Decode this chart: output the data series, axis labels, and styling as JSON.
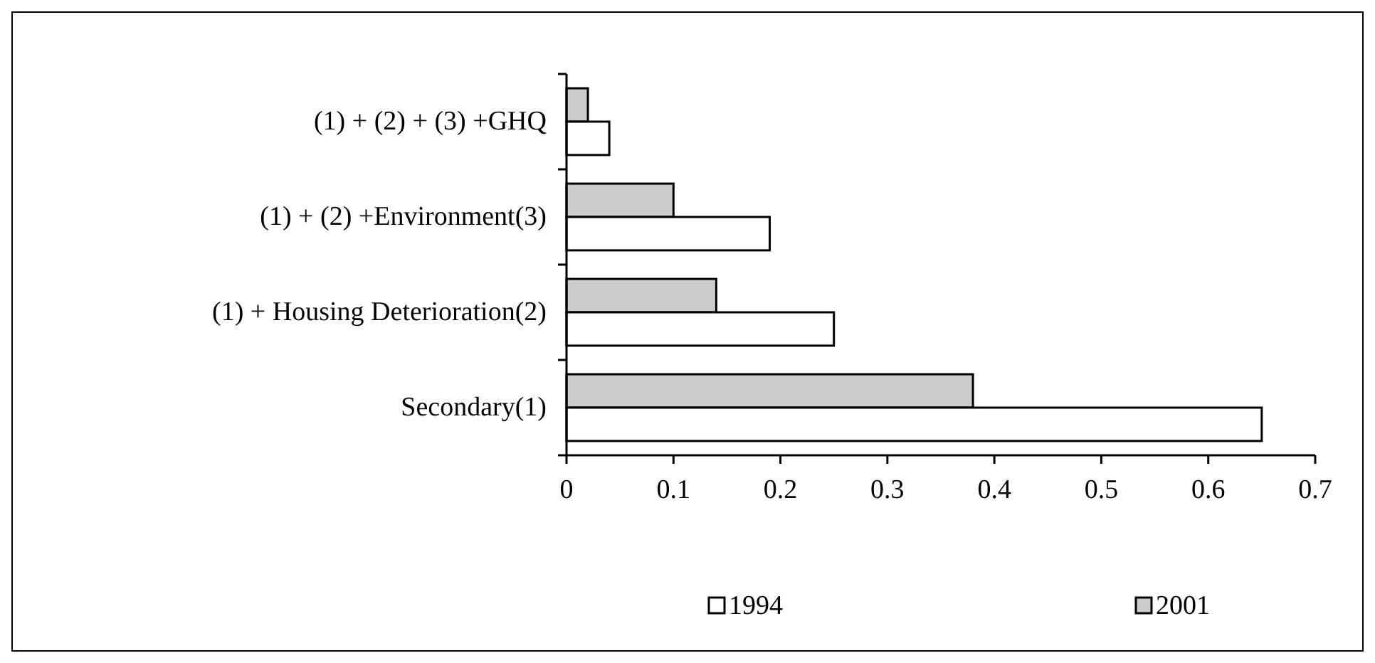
{
  "chart_data": {
    "type": "bar",
    "orientation": "horizontal",
    "categories": [
      "(1) + (2) + (3) +GHQ",
      "(1) + (2) +Environment(3)",
      "(1) + Housing Deterioration(2)",
      "Secondary(1)"
    ],
    "series": [
      {
        "name": "2001",
        "color": "#cccccc",
        "values": [
          0.02,
          0.1,
          0.14,
          0.38
        ]
      },
      {
        "name": "1994",
        "color": "#ffffff",
        "values": [
          0.04,
          0.19,
          0.25,
          0.65
        ]
      }
    ],
    "xlim": [
      0,
      0.7
    ],
    "xticks": [
      0,
      0.1,
      0.2,
      0.3,
      0.4,
      0.5,
      0.6,
      0.7
    ],
    "grid": false,
    "legend": "bottom"
  }
}
